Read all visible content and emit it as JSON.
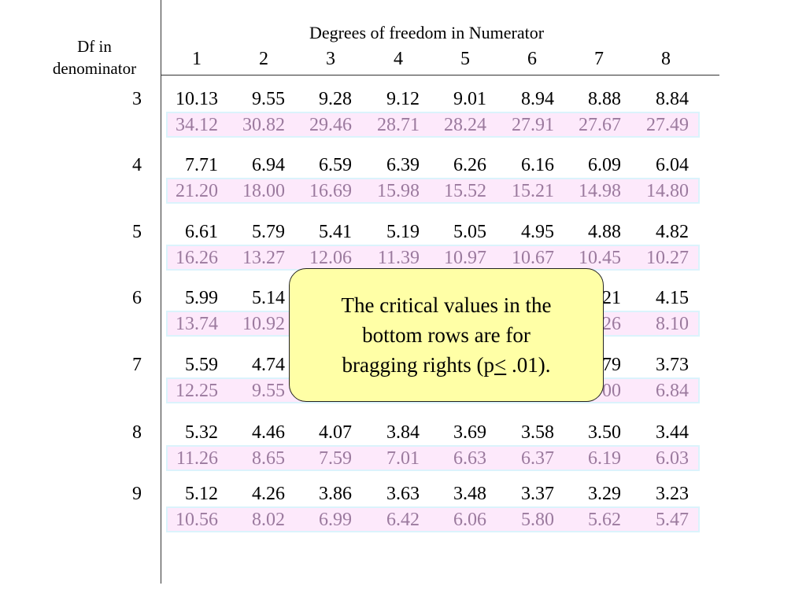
{
  "table": {
    "stub_header_line1": "Df in",
    "stub_header_line2": "denominator",
    "numerator_title": "Degrees of freedom in Numerator",
    "columns": [
      "1",
      "2",
      "3",
      "4",
      "5",
      "6",
      "7",
      "8"
    ],
    "rows": [
      {
        "df": "3",
        "p05": [
          "10.13",
          "9.55",
          "9.28",
          "9.12",
          "9.01",
          "8.94",
          "8.88",
          "8.84"
        ],
        "p01": [
          "34.12",
          "30.82",
          "29.46",
          "28.71",
          "28.24",
          "27.91",
          "27.67",
          "27.49"
        ]
      },
      {
        "df": "4",
        "p05": [
          "7.71",
          "6.94",
          "6.59",
          "6.39",
          "6.26",
          "6.16",
          "6.09",
          "6.04"
        ],
        "p01": [
          "21.20",
          "18.00",
          "16.69",
          "15.98",
          "15.52",
          "15.21",
          "14.98",
          "14.80"
        ]
      },
      {
        "df": "5",
        "p05": [
          "6.61",
          "5.79",
          "5.41",
          "5.19",
          "5.05",
          "4.95",
          "4.88",
          "4.82"
        ],
        "p01": [
          "16.26",
          "13.27",
          "12.06",
          "11.39",
          "10.97",
          "10.67",
          "10.45",
          "10.27"
        ]
      },
      {
        "df": "6",
        "p05": [
          "5.99",
          "5.14",
          "",
          "",
          "",
          "",
          "21",
          "4.15"
        ],
        "p01": [
          "13.74",
          "10.92",
          "",
          "",
          "",
          "",
          "26",
          "8.10"
        ]
      },
      {
        "df": "7",
        "p05": [
          "5.59",
          "4.74",
          "",
          "",
          "",
          "",
          "79",
          "3.73"
        ],
        "p01": [
          "12.25",
          "9.55",
          "",
          "",
          "",
          "",
          "00",
          "6.84"
        ]
      },
      {
        "df": "8",
        "p05": [
          "5.32",
          "4.46",
          "4.07",
          "3.84",
          "3.69",
          "3.58",
          "3.50",
          "3.44"
        ],
        "p01": [
          "11.26",
          "8.65",
          "7.59",
          "7.01",
          "6.63",
          "6.37",
          "6.19",
          "6.03"
        ]
      },
      {
        "df": "9",
        "p05": [
          "5.12",
          "4.26",
          "3.86",
          "3.63",
          "3.48",
          "3.37",
          "3.29",
          "3.23"
        ],
        "p01": [
          "10.56",
          "8.02",
          "6.99",
          "6.42",
          "6.06",
          "5.80",
          "5.62",
          "5.47"
        ]
      }
    ]
  },
  "callout": {
    "line1": "The critical values in the",
    "line2": "bottom rows are for",
    "line3_pre": "bragging rights (p",
    "line3_underlined": "<",
    "line3_post": " .01)."
  },
  "colors": {
    "bottom_row_text": "#9b7a9e",
    "bottom_row_fill": "#fde9fb",
    "bottom_row_border": "#dbf3fc",
    "callout_fill": "#ffffa6"
  }
}
